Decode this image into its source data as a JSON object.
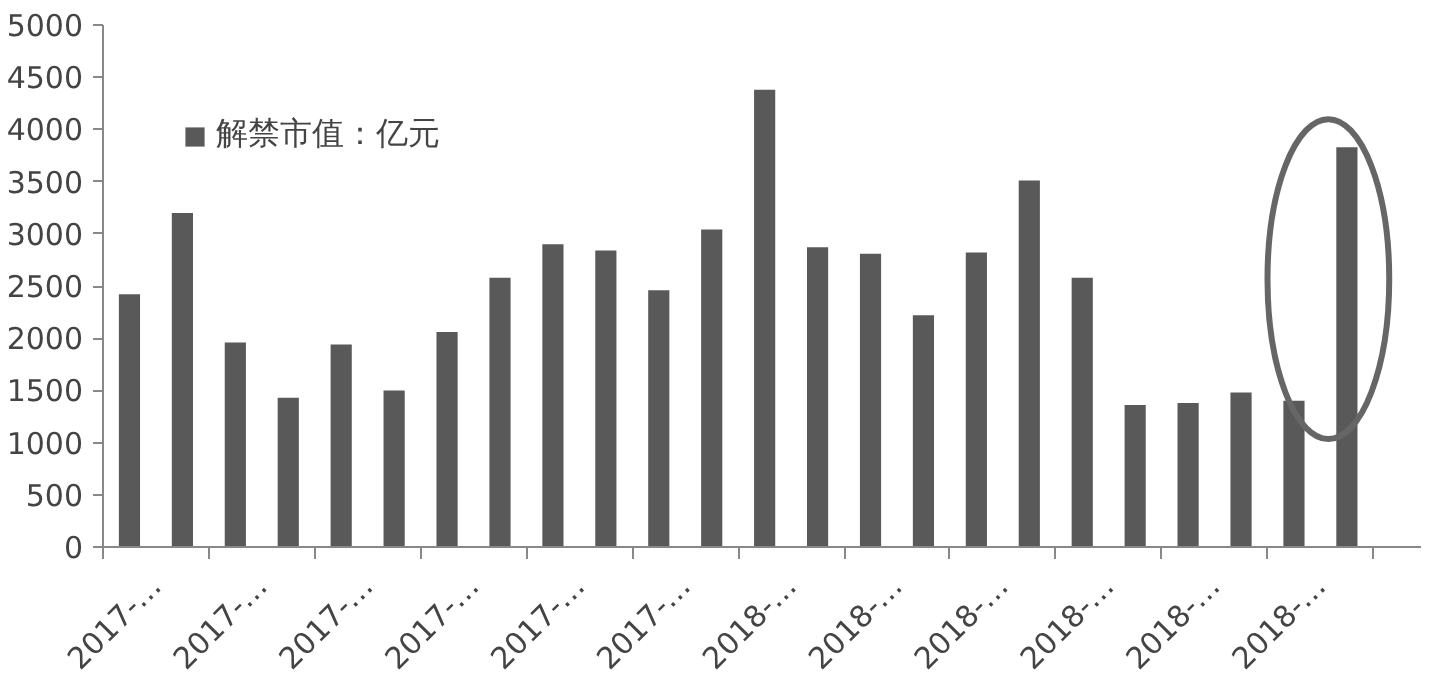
{
  "chart_data": {
    "type": "bar",
    "categories": [
      "2017-…",
      null,
      "2017-…",
      null,
      "2017-…",
      null,
      "2017-…",
      null,
      "2017-…",
      null,
      "2017-…",
      null,
      "2018-…",
      null,
      "2018-…",
      null,
      "2018-…",
      null,
      "2018-…",
      null,
      "2018-…",
      null,
      "2018-…",
      null
    ],
    "series": [
      {
        "name": "解禁市值：亿元",
        "color": "#595959",
        "values": [
          2420,
          3200,
          1960,
          1430,
          1940,
          1500,
          2060,
          2580,
          2900,
          2840,
          2460,
          3040,
          4380,
          2870,
          2810,
          2220,
          2820,
          3510,
          2580,
          1360,
          1380,
          1480,
          1400,
          3830
        ]
      }
    ],
    "ylim": [
      0,
      5000
    ],
    "yticks": [
      0,
      500,
      1000,
      1500,
      2000,
      2500,
      3000,
      3500,
      4000,
      4500,
      5000
    ],
    "grid": false,
    "legend": "top left"
  }
}
